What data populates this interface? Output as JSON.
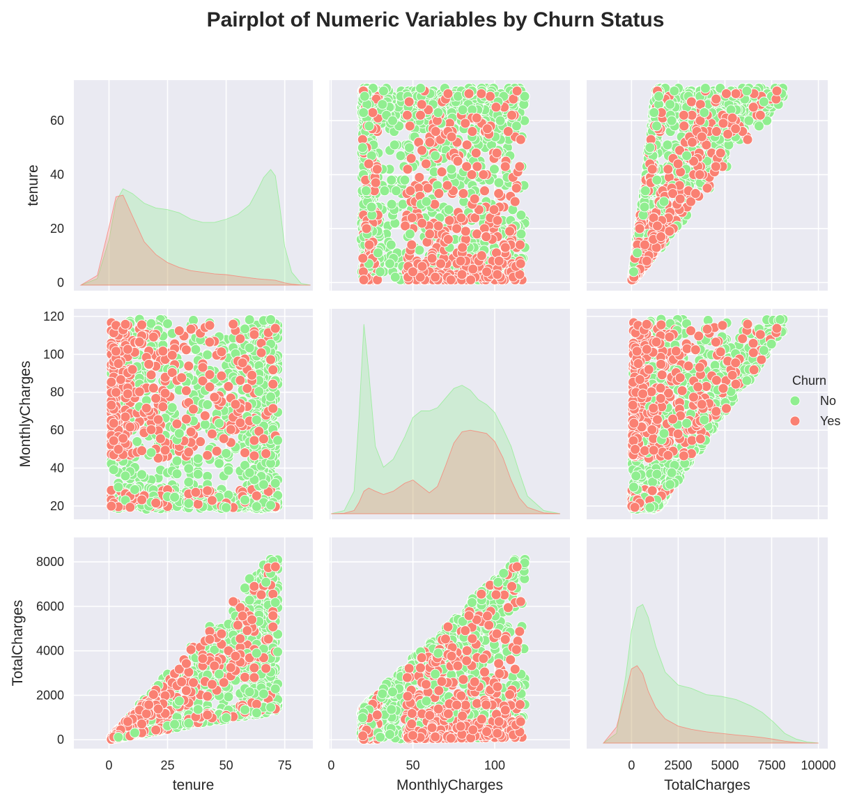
{
  "chart_data": {
    "type": "scatter",
    "title": "Pairplot of Numeric Variables by Churn Status",
    "variables": [
      "tenure",
      "MonthlyCharges",
      "TotalCharges"
    ],
    "axes": {
      "tenure": {
        "label": "tenure",
        "range": [
          -15,
          87
        ],
        "ticks": [
          0,
          25,
          50,
          75
        ],
        "ticks_y": [
          0,
          20,
          40,
          60
        ],
        "range_y": [
          -3,
          75
        ]
      },
      "MonthlyCharges": {
        "label": "MonthlyCharges",
        "range": [
          -1,
          146
        ],
        "ticks": [
          0,
          50,
          100
        ],
        "ticks_y": [
          20,
          40,
          60,
          80,
          100,
          120
        ],
        "range_y": [
          13,
          124
        ]
      },
      "TotalCharges": {
        "label": "TotalCharges",
        "range": [
          -2400,
          10500
        ],
        "ticks": [
          0,
          2500,
          5000,
          7500,
          10000
        ],
        "ticks_y": [
          0,
          2000,
          4000,
          6000,
          8000
        ],
        "range_y": [
          -400,
          9100
        ]
      }
    },
    "legend": {
      "title": "Churn",
      "placement": "center-right",
      "entries": [
        {
          "label": "No",
          "color": "#90ee90"
        },
        {
          "label": "Yes",
          "color": "#fa8072"
        }
      ]
    },
    "diag_kde": {
      "tenure": {
        "x": [
          -12,
          -5,
          0,
          3,
          6,
          10,
          15,
          20,
          25,
          30,
          35,
          40,
          45,
          50,
          55,
          60,
          63,
          66,
          69,
          71,
          73,
          75,
          78,
          82,
          86
        ],
        "No": [
          0,
          4,
          28,
          52,
          60,
          57,
          51,
          48,
          47,
          45,
          41,
          39,
          39,
          41,
          44,
          50,
          58,
          67,
          72,
          68,
          48,
          24,
          8,
          1,
          0
        ],
        "Yes": [
          0,
          6,
          36,
          55,
          56,
          43,
          27,
          19,
          14,
          11,
          9,
          8,
          7,
          6.5,
          5.5,
          4.5,
          4,
          3.6,
          3.3,
          3,
          2.2,
          1.4,
          0.6,
          0.1,
          0
        ]
      },
      "MonthlyCharges": {
        "x": [
          0,
          8,
          14,
          17,
          20,
          23,
          27,
          32,
          38,
          45,
          50,
          55,
          60,
          65,
          70,
          75,
          80,
          85,
          90,
          95,
          100,
          105,
          110,
          115,
          120,
          130,
          140
        ],
        "No": [
          0,
          2,
          14,
          60,
          118,
          88,
          42,
          29,
          34,
          48,
          60,
          64,
          64,
          66,
          72,
          78,
          80,
          77,
          71,
          68,
          63,
          53,
          42,
          26,
          11,
          2,
          0
        ],
        "Yes": [
          0,
          0.3,
          2,
          7,
          14,
          16,
          14,
          12,
          14,
          19,
          21,
          17,
          13,
          17,
          30,
          44,
          51,
          52,
          51,
          50,
          45,
          35,
          21,
          10,
          4,
          0.5,
          0
        ]
      },
      "TotalCharges": {
        "x": [
          -1500,
          -800,
          -300,
          0,
          300,
          600,
          900,
          1300,
          1800,
          2500,
          3200,
          4000,
          4800,
          5600,
          6400,
          7000,
          7600,
          8200,
          8800,
          9400,
          10000
        ],
        "No": [
          0,
          6,
          42,
          70,
          84,
          86,
          78,
          60,
          44,
          36,
          34,
          30,
          29,
          27,
          23,
          19,
          13,
          6,
          2.5,
          0.7,
          0
        ],
        "Yes": [
          0,
          10,
          32,
          46,
          48,
          43,
          32,
          22,
          15,
          10.5,
          8.5,
          7,
          6,
          5,
          4.2,
          3.4,
          2.4,
          1.2,
          0.4,
          0.1,
          0
        ]
      },
      "peak": 125
    },
    "scatter_rules": {
      "tenure_range": [
        1,
        72
      ],
      "monthly_range": [
        18.25,
        118.75
      ],
      "points_per_class": {
        "No": 1100,
        "Yes": 420
      }
    }
  }
}
